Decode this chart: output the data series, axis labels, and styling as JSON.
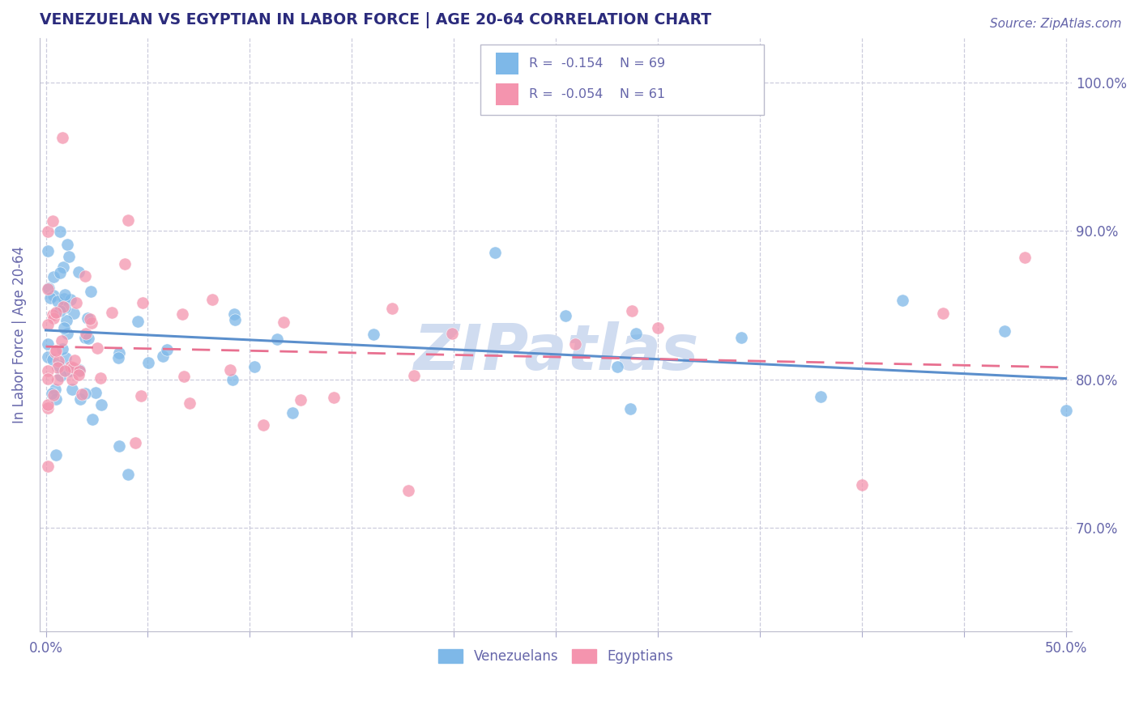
{
  "title": "VENEZUELAN VS EGYPTIAN IN LABOR FORCE | AGE 20-64 CORRELATION CHART",
  "source": "Source: ZipAtlas.com",
  "ylabel": "In Labor Force | Age 20-64",
  "xlim_min": 0.0,
  "xlim_max": 0.5,
  "ylim_min": 0.63,
  "ylim_max": 1.03,
  "color_venezuelan": "#7EB8E8",
  "color_egyptian": "#F494AE",
  "title_color": "#2B2B7C",
  "axis_label_color": "#6666AA",
  "tick_color": "#6666AA",
  "grid_color": "#CCCCDD",
  "watermark_color": "#D0DCF0",
  "right_ytick_positions": [
    0.7,
    0.8,
    0.9,
    1.0
  ],
  "right_ytick_labels": [
    "70.0%",
    "80.0%",
    "90.0%",
    "100.0%"
  ],
  "xtick_positions": [
    0.0,
    0.05,
    0.1,
    0.15,
    0.2,
    0.25,
    0.3,
    0.35,
    0.4,
    0.45,
    0.5
  ],
  "legend_r1": "R =  -0.154",
  "legend_n1": "N = 69",
  "legend_r2": "R =  -0.054",
  "legend_n2": "N = 61",
  "ven_intercept": 0.833,
  "ven_slope": -0.065,
  "egy_intercept": 0.822,
  "egy_slope": -0.028
}
